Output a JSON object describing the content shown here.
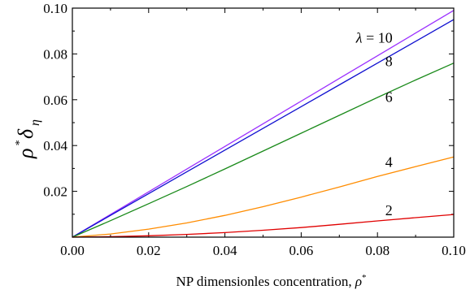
{
  "chart_data": {
    "type": "line",
    "xlabel": "NP dimensionles concentration, ",
    "xlabel_symbol": "ρ",
    "xlabel_sup": "*",
    "ylabel": {
      "rho": "ρ",
      "star": "*",
      "delta": "δ",
      "eta": "η"
    },
    "xlim": [
      0.0,
      0.1
    ],
    "ylim": [
      0.0,
      0.1
    ],
    "x_ticks": [
      "0.00",
      "0.02",
      "0.04",
      "0.06",
      "0.08",
      "0.10"
    ],
    "y_ticks": [
      "",
      "0.02",
      "0.04",
      "0.06",
      "0.08",
      "0.10"
    ],
    "grid": false,
    "x": [
      0.0,
      0.01,
      0.02,
      0.03,
      0.04,
      0.05,
      0.06,
      0.07,
      0.08,
      0.09,
      0.1
    ],
    "series": [
      {
        "name": "λ = 10",
        "color": "#9b30ff",
        "values": [
          0.0,
          0.0099,
          0.0198,
          0.0297,
          0.0396,
          0.0495,
          0.0594,
          0.0693,
          0.0792,
          0.0891,
          0.099
        ]
      },
      {
        "name": "8",
        "color": "#1010d0",
        "values": [
          0.0,
          0.0095,
          0.019,
          0.0285,
          0.038,
          0.0475,
          0.057,
          0.0665,
          0.076,
          0.0855,
          0.095
        ]
      },
      {
        "name": "6",
        "color": "#1a8a1a",
        "values": [
          0.0,
          0.0072,
          0.0146,
          0.0221,
          0.0298,
          0.0376,
          0.0454,
          0.0532,
          0.061,
          0.0686,
          0.076
        ]
      },
      {
        "name": "4",
        "color": "#ff8c00",
        "values": [
          0.0,
          0.0014,
          0.0035,
          0.0062,
          0.0095,
          0.0133,
          0.0175,
          0.0219,
          0.0265,
          0.0308,
          0.035
        ]
      },
      {
        "name": "2",
        "color": "#e00000",
        "values": [
          0.0,
          0.0002,
          0.0006,
          0.0012,
          0.002,
          0.003,
          0.0042,
          0.0056,
          0.0071,
          0.0085,
          0.0099
        ]
      }
    ]
  }
}
